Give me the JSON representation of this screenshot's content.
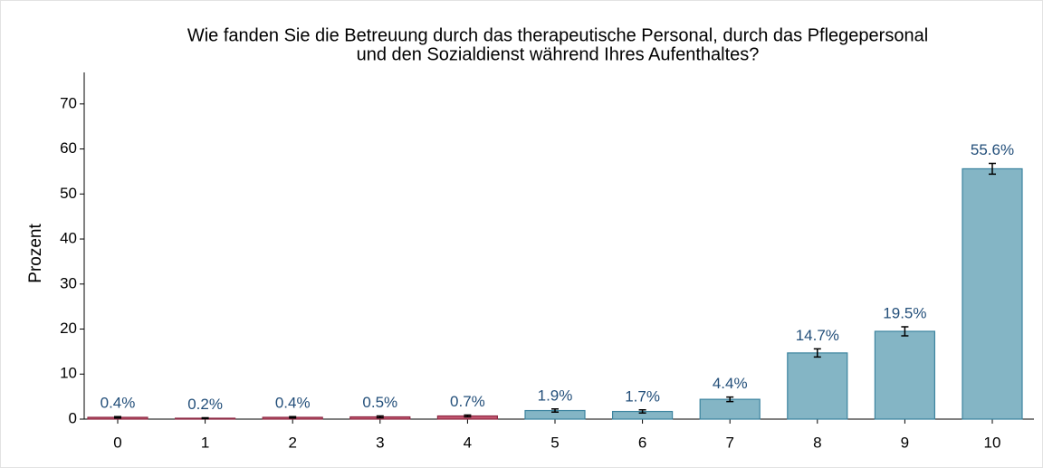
{
  "chart_data": {
    "type": "bar",
    "title": [
      "Wie fanden Sie die Betreuung durch das therapeutische Personal, durch das Pflegepersonal",
      "und den Sozialdienst während Ihres Aufenthaltes?"
    ],
    "y_label": "Prozent",
    "categories": [
      "0",
      "1",
      "2",
      "3",
      "4",
      "5",
      "6",
      "7",
      "8",
      "9",
      "10"
    ],
    "values": [
      0.4,
      0.2,
      0.4,
      0.5,
      0.7,
      1.9,
      1.7,
      4.4,
      14.7,
      19.5,
      55.6
    ],
    "value_labels": [
      "0.4%",
      "0.2%",
      "0.4%",
      "0.5%",
      "0.7%",
      "1.9%",
      "1.7%",
      "4.4%",
      "14.7%",
      "19.5%",
      "55.6%"
    ],
    "errors": [
      0.15,
      0.1,
      0.15,
      0.2,
      0.2,
      0.35,
      0.35,
      0.5,
      0.9,
      1.0,
      1.2
    ],
    "colors": [
      "#c2566f",
      "#c2566f",
      "#c2566f",
      "#c2566f",
      "#c2566f",
      "#84b5c5",
      "#84b5c5",
      "#84b5c5",
      "#84b5c5",
      "#84b5c5",
      "#84b5c5"
    ],
    "ylim": [
      0,
      77
    ],
    "yticks": [
      0,
      10,
      20,
      30,
      40,
      50,
      60,
      70
    ]
  }
}
